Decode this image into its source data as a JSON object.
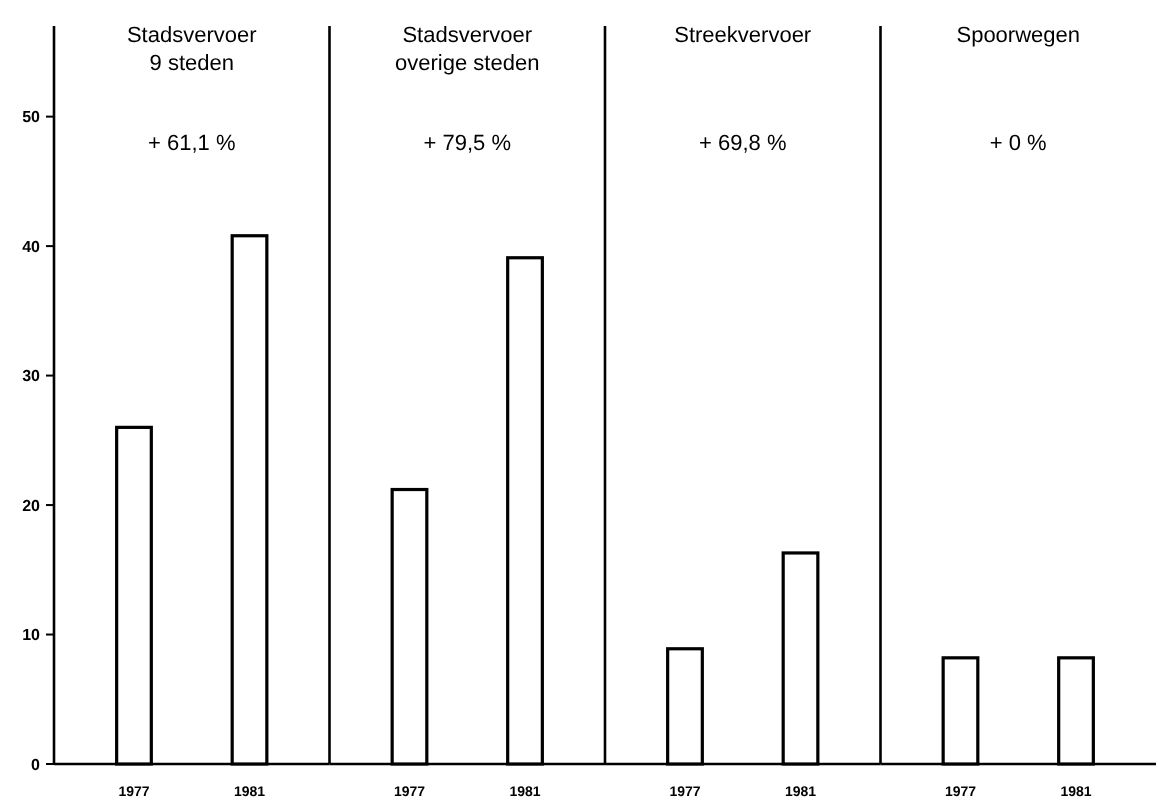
{
  "chart_data": [
    {
      "type": "bar",
      "title": "Stadsvervoer\n9 steden",
      "annotations": [
        "+ 61,1 %"
      ],
      "categories": [
        "1977",
        "1981"
      ],
      "values": [
        26,
        40.8
      ],
      "color": "#ffffff",
      "ylim": [
        0,
        57
      ],
      "yticks": [
        0,
        10,
        20,
        30,
        40,
        50
      ]
    },
    {
      "type": "bar",
      "title": "Stadsvervoer\noverige steden",
      "annotations": [
        "+ 79,5 %"
      ],
      "categories": [
        "1977",
        "1981"
      ],
      "values": [
        21.2,
        39.1
      ],
      "color": "#ffffff",
      "ylim": [
        0,
        57
      ],
      "tick_labels": "x"
    },
    {
      "type": "bar",
      "title": "Streekvervoer",
      "annotations": [
        "+ 69,8 %"
      ],
      "categories": [
        "1977",
        "1981"
      ],
      "values": [
        8.9,
        16.3
      ],
      "color": "#ffffff",
      "ylim": [
        0,
        57
      ],
      "tick_labels": "x"
    },
    {
      "type": "bar",
      "title": "Spoorwegen",
      "annotations": [
        "+ 0 %"
      ],
      "categories": [
        "1977",
        "1981"
      ],
      "values": [
        8.2,
        8.2
      ],
      "color": "#ffffff",
      "ylim": [
        0,
        57
      ],
      "tick_labels": "x"
    }
  ]
}
